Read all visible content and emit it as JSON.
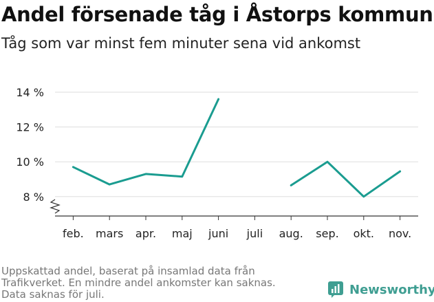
{
  "title": "Andel försenade tåg i Åstorps kommun",
  "subtitle": "Tåg som var minst fem minuter sena vid ankomst",
  "note_lines": [
    "Uppskattad andel, baserat på insamlad data från",
    "Trafikverket. En mindre andel ankomster kan saknas.",
    "Data saknas för juli."
  ],
  "brand": "Newsworthy",
  "colors": {
    "line": "#1a9c90",
    "grid": "#dddddd",
    "axis": "#333333",
    "brand": "#3f9e92"
  },
  "chart_data": {
    "type": "line",
    "title": "Andel försenade tåg i Åstorps kommun",
    "subtitle": "Tåg som var minst fem minuter sena vid ankomst",
    "categories": [
      "feb.",
      "mars",
      "apr.",
      "maj",
      "juni",
      "juli",
      "aug.",
      "sep.",
      "okt.",
      "nov."
    ],
    "series": [
      {
        "values": [
          9.7,
          8.7,
          9.3,
          9.15,
          13.6,
          null,
          8.65,
          10.0,
          8.0,
          9.45
        ]
      }
    ],
    "yticks": [
      8,
      10,
      12,
      14
    ],
    "ytick_labels": [
      "8 %",
      "10 %",
      "12 %",
      "14 %"
    ],
    "ylim": [
      6.9,
      14.0
    ],
    "y_axis_break": true,
    "grid": "horizontal",
    "legend": "none"
  }
}
